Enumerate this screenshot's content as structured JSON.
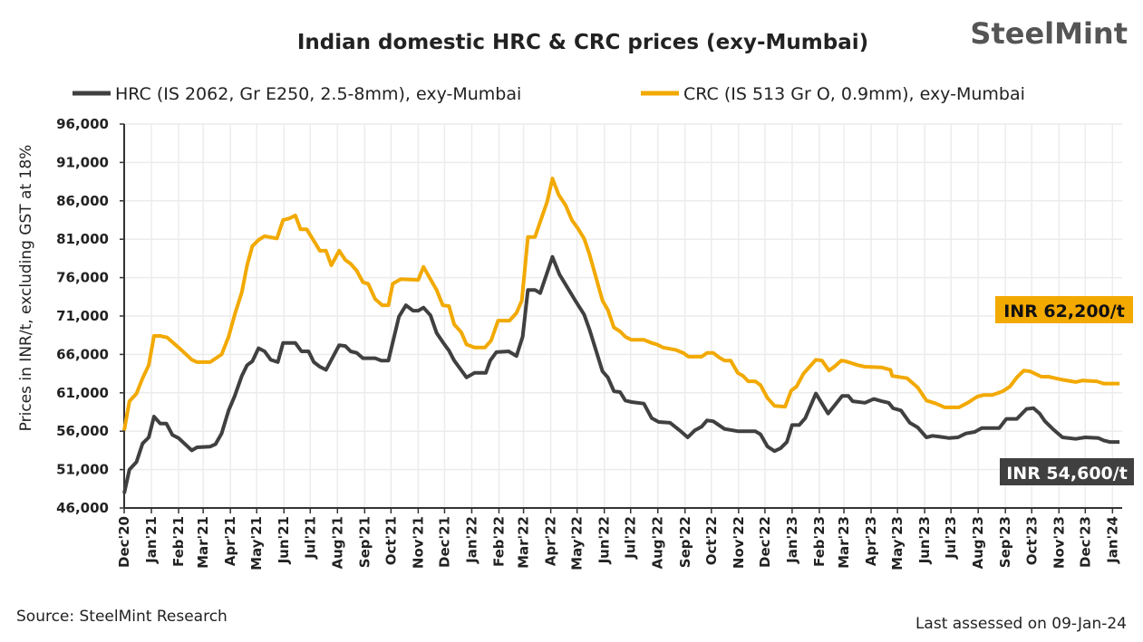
{
  "chart_data": {
    "type": "line",
    "title": "Indian domestic HRC & CRC prices (exy-Mumbai)",
    "logo": "SteelMint",
    "ylabel": "Prices in INR/t, excluding GST at 18%",
    "xlabel": "",
    "ylim": [
      46000,
      96000
    ],
    "yticks": [
      46000,
      51000,
      56000,
      61000,
      66000,
      71000,
      76000,
      81000,
      86000,
      91000,
      96000
    ],
    "ytick_labels": [
      "46,000",
      "51,000",
      "56,000",
      "61,000",
      "66,000",
      "71,000",
      "76,000",
      "81,000",
      "86,000",
      "91,000",
      "96,000"
    ],
    "xlim": [
      "2020-12-01",
      "2024-01-12"
    ],
    "xtick_labels": [
      "Dec'20",
      "Jan'21",
      "Feb'21",
      "Mar'21",
      "Apr'21",
      "May'21",
      "Jun'21",
      "Jul'21",
      "Aug'21",
      "Sep'21",
      "Oct'21",
      "Nov'21",
      "Dec'21",
      "Jan'22",
      "Feb'22",
      "Mar'22",
      "Apr'22",
      "May'22",
      "Jun'22",
      "Jul'22",
      "Aug'22",
      "Sep'22",
      "Oct'22",
      "Nov'22",
      "Dec'22",
      "Jan'23",
      "Feb'23",
      "Mar'23",
      "Apr'23",
      "May'23",
      "Jun'23",
      "Jul'23",
      "Aug'23",
      "Sep'23",
      "Oct'23",
      "Nov'23",
      "Dec'23",
      "Jan'24"
    ],
    "grid": true,
    "legend_position": "top",
    "series": [
      {
        "name": "HRC (IS 2062, Gr E250, 2.5-8mm), exy-Mumbai",
        "color": "#404040",
        "points": [
          [
            "2020-12-01",
            47900
          ],
          [
            "2020-12-07",
            51000
          ],
          [
            "2020-12-15",
            52000
          ],
          [
            "2020-12-22",
            54400
          ],
          [
            "2020-12-29",
            55200
          ],
          [
            "2021-01-04",
            57900
          ],
          [
            "2021-01-11",
            57000
          ],
          [
            "2021-01-18",
            57000
          ],
          [
            "2021-01-25",
            55500
          ],
          [
            "2021-02-01",
            55100
          ],
          [
            "2021-02-16",
            53500
          ],
          [
            "2021-02-22",
            53900
          ],
          [
            "2021-03-09",
            54000
          ],
          [
            "2021-03-15",
            54300
          ],
          [
            "2021-03-22",
            55700
          ],
          [
            "2021-03-30",
            58700
          ],
          [
            "2021-04-06",
            60600
          ],
          [
            "2021-04-14",
            63200
          ],
          [
            "2021-04-20",
            64600
          ],
          [
            "2021-04-26",
            65100
          ],
          [
            "2021-05-03",
            66800
          ],
          [
            "2021-05-10",
            66400
          ],
          [
            "2021-05-17",
            65300
          ],
          [
            "2021-05-25",
            65000
          ],
          [
            "2021-05-31",
            67500
          ],
          [
            "2021-06-14",
            67500
          ],
          [
            "2021-06-21",
            66400
          ],
          [
            "2021-06-29",
            66400
          ],
          [
            "2021-07-05",
            65000
          ],
          [
            "2021-07-12",
            64400
          ],
          [
            "2021-07-19",
            64000
          ],
          [
            "2021-08-03",
            67200
          ],
          [
            "2021-08-10",
            67100
          ],
          [
            "2021-08-16",
            66400
          ],
          [
            "2021-08-23",
            66200
          ],
          [
            "2021-08-30",
            65500
          ],
          [
            "2021-09-13",
            65500
          ],
          [
            "2021-09-20",
            65200
          ],
          [
            "2021-09-28",
            65200
          ],
          [
            "2021-10-10",
            70900
          ],
          [
            "2021-10-18",
            72400
          ],
          [
            "2021-10-26",
            71700
          ],
          [
            "2021-11-01",
            71700
          ],
          [
            "2021-11-07",
            72100
          ],
          [
            "2021-11-15",
            71100
          ],
          [
            "2021-11-22",
            68800
          ],
          [
            "2021-11-29",
            67600
          ],
          [
            "2021-12-06",
            66500
          ],
          [
            "2021-12-12",
            65200
          ],
          [
            "2021-12-26",
            63000
          ],
          [
            "2022-01-04",
            63600
          ],
          [
            "2022-01-17",
            63600
          ],
          [
            "2022-01-22",
            65200
          ],
          [
            "2022-01-29",
            66300
          ],
          [
            "2022-02-12",
            66400
          ],
          [
            "2022-02-21",
            65800
          ],
          [
            "2022-02-28",
            68300
          ],
          [
            "2022-03-06",
            74400
          ],
          [
            "2022-03-14",
            74400
          ],
          [
            "2022-03-20",
            74000
          ],
          [
            "2022-04-03",
            78700
          ],
          [
            "2022-04-11",
            76400
          ],
          [
            "2022-04-29",
            73000
          ],
          [
            "2022-05-09",
            71200
          ],
          [
            "2022-05-15",
            69300
          ],
          [
            "2022-05-30",
            63800
          ],
          [
            "2022-06-05",
            63000
          ],
          [
            "2022-06-12",
            61200
          ],
          [
            "2022-06-19",
            61100
          ],
          [
            "2022-06-25",
            60000
          ],
          [
            "2022-07-02",
            59800
          ],
          [
            "2022-07-16",
            59600
          ],
          [
            "2022-07-25",
            57700
          ],
          [
            "2022-08-02",
            57200
          ],
          [
            "2022-08-15",
            57100
          ],
          [
            "2022-08-26",
            56100
          ],
          [
            "2022-09-04",
            55200
          ],
          [
            "2022-09-12",
            56100
          ],
          [
            "2022-09-20",
            56600
          ],
          [
            "2022-09-26",
            57400
          ],
          [
            "2022-10-03",
            57300
          ],
          [
            "2022-10-16",
            56300
          ],
          [
            "2022-10-31",
            56000
          ],
          [
            "2022-11-20",
            56000
          ],
          [
            "2022-11-26",
            55600
          ],
          [
            "2022-12-04",
            54000
          ],
          [
            "2022-12-12",
            53400
          ],
          [
            "2022-12-19",
            53800
          ],
          [
            "2022-12-26",
            54600
          ],
          [
            "2023-01-01",
            56800
          ],
          [
            "2023-01-09",
            56800
          ],
          [
            "2023-01-16",
            57700
          ],
          [
            "2023-01-28",
            60900
          ],
          [
            "2023-02-11",
            58300
          ],
          [
            "2023-02-27",
            60600
          ],
          [
            "2023-03-06",
            60600
          ],
          [
            "2023-03-11",
            59900
          ],
          [
            "2023-03-25",
            59700
          ],
          [
            "2023-04-04",
            60200
          ],
          [
            "2023-04-13",
            59900
          ],
          [
            "2023-04-21",
            59700
          ],
          [
            "2023-04-26",
            59000
          ],
          [
            "2023-05-05",
            58700
          ],
          [
            "2023-05-15",
            57100
          ],
          [
            "2023-05-24",
            56500
          ],
          [
            "2023-06-03",
            55200
          ],
          [
            "2023-06-10",
            55400
          ],
          [
            "2023-06-17",
            55300
          ],
          [
            "2023-06-29",
            55100
          ],
          [
            "2023-07-09",
            55200
          ],
          [
            "2023-07-18",
            55700
          ],
          [
            "2023-07-28",
            55900
          ],
          [
            "2023-08-05",
            56400
          ],
          [
            "2023-08-25",
            56400
          ],
          [
            "2023-09-02",
            57600
          ],
          [
            "2023-09-14",
            57600
          ],
          [
            "2023-09-25",
            58900
          ],
          [
            "2023-10-03",
            59000
          ],
          [
            "2023-10-10",
            58300
          ],
          [
            "2023-10-16",
            57300
          ],
          [
            "2023-10-25",
            56300
          ],
          [
            "2023-11-05",
            55200
          ],
          [
            "2023-11-20",
            55000
          ],
          [
            "2023-12-01",
            55200
          ],
          [
            "2023-12-16",
            55100
          ],
          [
            "2023-12-22",
            54800
          ],
          [
            "2023-12-29",
            54600
          ],
          [
            "2024-01-09",
            54600
          ]
        ],
        "last_label": "INR 54,600/t"
      },
      {
        "name": "CRC (IS 513 Gr O, 0.9mm), exy-Mumbai",
        "color": "#F2A900",
        "points": [
          [
            "2020-12-01",
            56100
          ],
          [
            "2020-12-07",
            59900
          ],
          [
            "2020-12-15",
            60900
          ],
          [
            "2020-12-22",
            62900
          ],
          [
            "2020-12-29",
            64600
          ],
          [
            "2021-01-04",
            68400
          ],
          [
            "2021-01-11",
            68400
          ],
          [
            "2021-01-19",
            68200
          ],
          [
            "2021-02-02",
            66800
          ],
          [
            "2021-02-16",
            65300
          ],
          [
            "2021-02-22",
            65000
          ],
          [
            "2021-03-09",
            65000
          ],
          [
            "2021-03-22",
            66000
          ],
          [
            "2021-03-30",
            68300
          ],
          [
            "2021-04-06",
            71200
          ],
          [
            "2021-04-14",
            74100
          ],
          [
            "2021-04-20",
            77600
          ],
          [
            "2021-04-26",
            80100
          ],
          [
            "2021-05-03",
            80900
          ],
          [
            "2021-05-10",
            81400
          ],
          [
            "2021-05-24",
            81100
          ],
          [
            "2021-05-31",
            83500
          ],
          [
            "2021-06-07",
            83700
          ],
          [
            "2021-06-14",
            84100
          ],
          [
            "2021-06-20",
            82300
          ],
          [
            "2021-06-27",
            82300
          ],
          [
            "2021-07-12",
            79500
          ],
          [
            "2021-07-19",
            79500
          ],
          [
            "2021-07-25",
            77600
          ],
          [
            "2021-08-03",
            79500
          ],
          [
            "2021-08-10",
            78300
          ],
          [
            "2021-08-16",
            77800
          ],
          [
            "2021-08-23",
            76900
          ],
          [
            "2021-08-30",
            75400
          ],
          [
            "2021-09-05",
            75200
          ],
          [
            "2021-09-13",
            73200
          ],
          [
            "2021-09-21",
            72400
          ],
          [
            "2021-09-28",
            72400
          ],
          [
            "2021-10-03",
            75200
          ],
          [
            "2021-10-12",
            75800
          ],
          [
            "2021-11-01",
            75700
          ],
          [
            "2021-11-07",
            77400
          ],
          [
            "2021-11-15",
            75800
          ],
          [
            "2021-11-22",
            74400
          ],
          [
            "2021-11-29",
            72400
          ],
          [
            "2021-12-06",
            72300
          ],
          [
            "2021-12-12",
            69900
          ],
          [
            "2021-12-20",
            68900
          ],
          [
            "2021-12-26",
            67300
          ],
          [
            "2022-01-04",
            66900
          ],
          [
            "2022-01-16",
            66900
          ],
          [
            "2022-01-23",
            67800
          ],
          [
            "2022-01-31",
            70400
          ],
          [
            "2022-02-13",
            70400
          ],
          [
            "2022-02-21",
            71400
          ],
          [
            "2022-02-27",
            73000
          ],
          [
            "2022-03-06",
            81300
          ],
          [
            "2022-03-14",
            81300
          ],
          [
            "2022-03-28",
            85900
          ],
          [
            "2022-04-03",
            88900
          ],
          [
            "2022-04-10",
            86800
          ],
          [
            "2022-04-18",
            85400
          ],
          [
            "2022-04-25",
            83500
          ],
          [
            "2022-05-02",
            82400
          ],
          [
            "2022-05-09",
            81100
          ],
          [
            "2022-05-15",
            79100
          ],
          [
            "2022-05-30",
            73000
          ],
          [
            "2022-06-05",
            71800
          ],
          [
            "2022-06-12",
            69500
          ],
          [
            "2022-06-19",
            69000
          ],
          [
            "2022-06-25",
            68300
          ],
          [
            "2022-07-02",
            67900
          ],
          [
            "2022-07-16",
            67900
          ],
          [
            "2022-07-25",
            67500
          ],
          [
            "2022-07-31",
            67300
          ],
          [
            "2022-08-07",
            66900
          ],
          [
            "2022-08-21",
            66600
          ],
          [
            "2022-08-30",
            66200
          ],
          [
            "2022-09-05",
            65700
          ],
          [
            "2022-09-20",
            65700
          ],
          [
            "2022-09-26",
            66200
          ],
          [
            "2022-10-03",
            66200
          ],
          [
            "2022-10-10",
            65600
          ],
          [
            "2022-10-16",
            65200
          ],
          [
            "2022-10-23",
            65200
          ],
          [
            "2022-10-31",
            63600
          ],
          [
            "2022-11-06",
            63200
          ],
          [
            "2022-11-12",
            62500
          ],
          [
            "2022-11-20",
            62500
          ],
          [
            "2022-11-26",
            62000
          ],
          [
            "2022-12-04",
            60300
          ],
          [
            "2022-12-12",
            59300
          ],
          [
            "2022-12-24",
            59200
          ],
          [
            "2022-12-31",
            61300
          ],
          [
            "2023-01-06",
            61800
          ],
          [
            "2023-01-14",
            63500
          ],
          [
            "2023-01-28",
            65300
          ],
          [
            "2023-02-04",
            65200
          ],
          [
            "2023-02-12",
            63900
          ],
          [
            "2023-02-18",
            64400
          ],
          [
            "2023-02-26",
            65200
          ],
          [
            "2023-03-03",
            65100
          ],
          [
            "2023-03-17",
            64600
          ],
          [
            "2023-03-25",
            64400
          ],
          [
            "2023-04-13",
            64300
          ],
          [
            "2023-04-23",
            64000
          ],
          [
            "2023-04-25",
            63200
          ],
          [
            "2023-05-12",
            62900
          ],
          [
            "2023-05-24",
            61700
          ],
          [
            "2023-06-03",
            60000
          ],
          [
            "2023-06-14",
            59600
          ],
          [
            "2023-06-24",
            59100
          ],
          [
            "2023-07-10",
            59100
          ],
          [
            "2023-07-20",
            59700
          ],
          [
            "2023-07-31",
            60500
          ],
          [
            "2023-08-07",
            60700
          ],
          [
            "2023-08-17",
            60700
          ],
          [
            "2023-08-29",
            61200
          ],
          [
            "2023-09-06",
            61800
          ],
          [
            "2023-09-14",
            63000
          ],
          [
            "2023-09-22",
            63900
          ],
          [
            "2023-09-29",
            63800
          ],
          [
            "2023-10-12",
            63100
          ],
          [
            "2023-10-20",
            63100
          ],
          [
            "2023-11-05",
            62700
          ],
          [
            "2023-11-20",
            62400
          ],
          [
            "2023-11-28",
            62600
          ],
          [
            "2023-12-14",
            62500
          ],
          [
            "2023-12-22",
            62200
          ],
          [
            "2024-01-09",
            62200
          ]
        ],
        "last_label": "INR 62,200/t"
      }
    ],
    "annotations": [
      "INR 62,200/t",
      "INR 54,600/t"
    ],
    "source": "Source: SteelMint Research",
    "note": "Last assessed on 09-Jan-24"
  }
}
